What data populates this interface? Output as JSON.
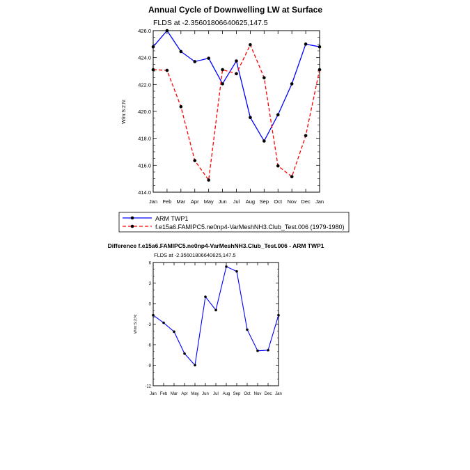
{
  "chart_data": [
    {
      "type": "line",
      "title": "Annual Cycle of Downwelling LW at Surface",
      "subtitle": "FLDS at -2.35601806640625,147.5",
      "xlabel": "",
      "ylabel": "W/m:S:2:N:",
      "categories": [
        "Jan",
        "Feb",
        "Mar",
        "Apr",
        "May",
        "Jun",
        "Jul",
        "Aug",
        "Sep",
        "Oct",
        "Nov",
        "Dec",
        "Jan"
      ],
      "ylim": [
        414.0,
        426.0
      ],
      "yticks": [
        "414.0",
        "416.0",
        "418.0",
        "420.0",
        "422.0",
        "424.0",
        "426.0"
      ],
      "series": [
        {
          "name": "ARM TWP1",
          "color": "#0000ff",
          "dash": "solid",
          "values": [
            424.8,
            426.0,
            424.45,
            423.7,
            423.95,
            422.05,
            423.75,
            419.55,
            417.8,
            419.75,
            422.05,
            425.0,
            424.8
          ]
        },
        {
          "name": "f.e15a6.FAMIPC5.ne0np4-VarMeshNH3.Club_Test.006 (1979-1980)",
          "color": "#ff0000",
          "dash": "dashed",
          "values": [
            423.1,
            423.05,
            420.35,
            416.35,
            414.9,
            423.1,
            422.8,
            424.95,
            422.5,
            415.95,
            415.15,
            418.2,
            423.1
          ]
        }
      ],
      "legend": "bottom"
    },
    {
      "type": "line",
      "title": "Difference f.e15a6.FAMIPC5.ne0np4-VarMeshNH3.Club_Test.006 - ARM TWP1",
      "subtitle": "FLDS at -2.35601806640625,147.5",
      "xlabel": "",
      "ylabel": "W/m:S:2:N:",
      "categories": [
        "Jan",
        "Feb",
        "Mar",
        "Apr",
        "May",
        "Jun",
        "Jul",
        "Aug",
        "Sep",
        "Oct",
        "Nov",
        "Dec",
        "Jan"
      ],
      "ylim": [
        -12,
        6
      ],
      "yticks": [
        "-12",
        "-9",
        "-6",
        "-3",
        "0",
        "3",
        "6"
      ],
      "series": [
        {
          "name": "Difference",
          "color": "#0000ff",
          "dash": "solid",
          "values": [
            -1.7,
            -2.8,
            -4.1,
            -7.3,
            -9.0,
            1.0,
            -0.95,
            5.4,
            4.7,
            -3.8,
            -6.9,
            -6.8,
            -1.7
          ]
        }
      ]
    }
  ]
}
